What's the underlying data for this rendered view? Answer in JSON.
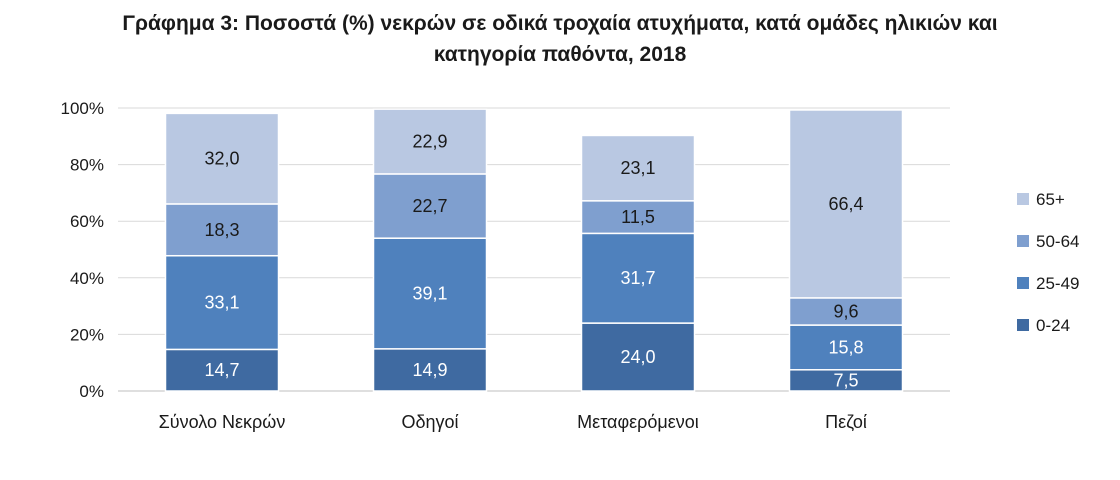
{
  "title_line1": "Γράφημα 3: Ποσοστά (%) νεκρών σε οδικά τροχαία ατυχήματα, κατά ομάδες ηλικιών και",
  "title_line2": "κατηγορία παθόντα, 2018",
  "chart_data": {
    "type": "bar",
    "stacked": true,
    "percent_stacked": true,
    "title": "Γράφημα 3: Ποσοστά (%) νεκρών σε οδικά τροχαία ατυχήματα, κατά ομάδες ηλικιών και κατηγορία παθόντα, 2018",
    "categories": [
      "Σύνολο Νεκρών",
      "Οδηγοί",
      "Μεταφερόμενοι",
      "Πεζοί"
    ],
    "series": [
      {
        "name": "0-24",
        "color": "#3f6aa1",
        "label_color": "#ffffff",
        "values": [
          14.7,
          14.9,
          24.0,
          7.5
        ],
        "labels": [
          "14,7",
          "14,9",
          "24,0",
          "7,5"
        ]
      },
      {
        "name": "25-49",
        "color": "#4f81bd",
        "label_color": "#ffffff",
        "values": [
          33.1,
          39.1,
          31.7,
          15.8
        ],
        "labels": [
          "33,1",
          "39,1",
          "31,7",
          "15,8"
        ]
      },
      {
        "name": "50-64",
        "color": "#7f9fcf",
        "label_color": "#1a1a1a",
        "values": [
          18.3,
          22.7,
          11.5,
          9.6
        ],
        "labels": [
          "18,3",
          "22,7",
          "11,5",
          "9,6"
        ]
      },
      {
        "name": "65+",
        "color": "#b9c8e2",
        "label_color": "#1a1a1a",
        "values": [
          32.0,
          22.9,
          23.1,
          66.4
        ],
        "labels": [
          "32,0",
          "22,9",
          "23,1",
          "66,4"
        ]
      }
    ],
    "ylim": [
      0,
      100
    ],
    "yticks": [
      "0%",
      "20%",
      "40%",
      "60%",
      "80%",
      "100%"
    ],
    "grid": true,
    "legend_position": "right",
    "legend_order": [
      "65+",
      "50-64",
      "25-49",
      "0-24"
    ]
  }
}
